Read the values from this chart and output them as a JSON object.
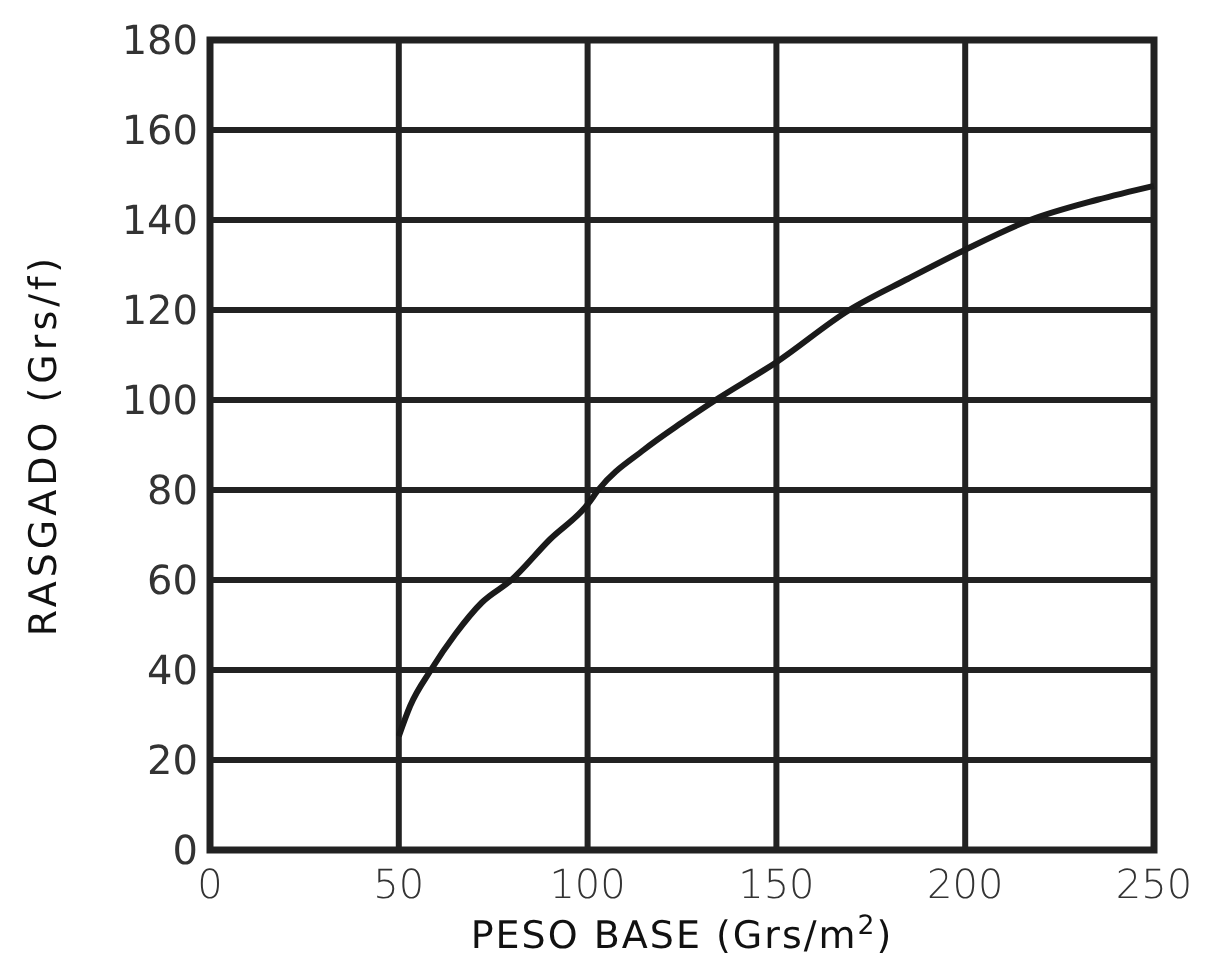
{
  "chart_data": {
    "type": "line",
    "xlabel": "PESO BASE (Grs/m$^{2}$)",
    "ylabel": "RASGADO (Grs/f)",
    "x": [
      50,
      53,
      58.5,
      65,
      72,
      79.8,
      90,
      100,
      102.8,
      115,
      125,
      133.9,
      150,
      169.3,
      185,
      200,
      217.2,
      235,
      250
    ],
    "series": [
      {
        "color": "#1a1a1a",
        "values": [
          25.3,
          32,
          40,
          48,
          55,
          60,
          69,
          76.8,
          80,
          89,
          95,
          100,
          108.4,
          120,
          127,
          133.4,
          140,
          144.5,
          147.6
        ]
      }
    ],
    "xlim": [
      0,
      250
    ],
    "xticks": [
      0,
      50,
      100,
      150,
      200,
      250
    ],
    "ylim": [
      0,
      180
    ],
    "yticks": [
      0,
      20,
      40,
      60,
      80,
      100,
      120,
      140,
      160,
      180
    ],
    "grid": true,
    "marker": "none",
    "line_style": "solid"
  }
}
